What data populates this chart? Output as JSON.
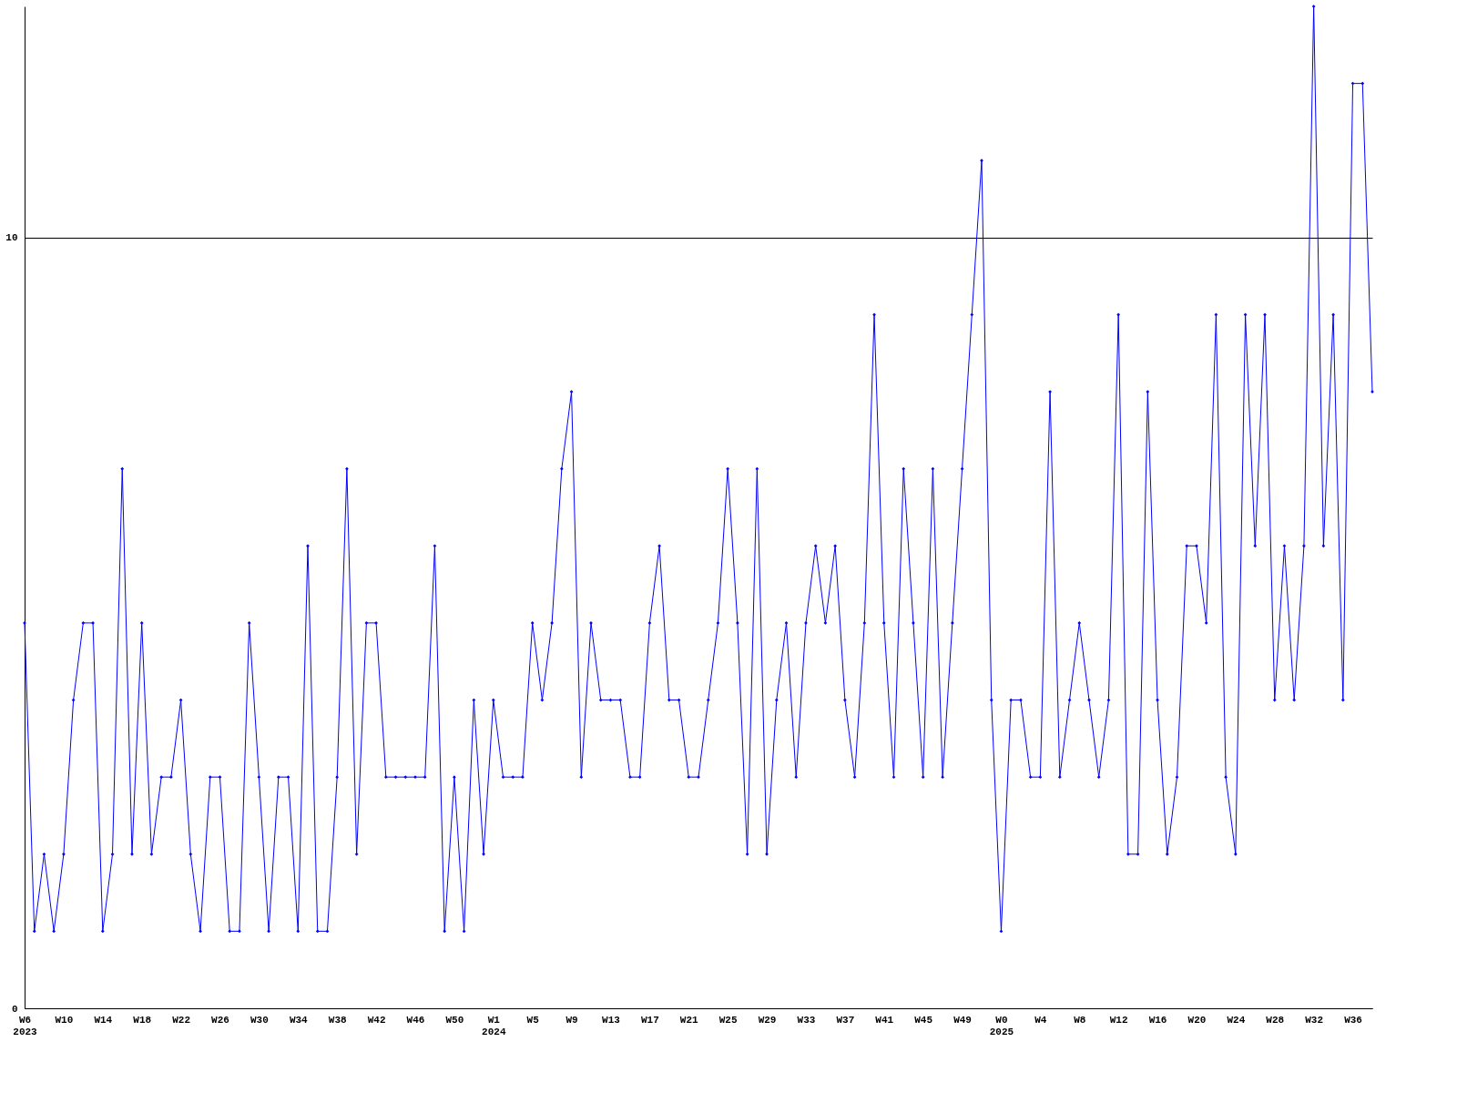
{
  "chart_data": {
    "type": "line",
    "categories": [
      "W6\n2023",
      null,
      null,
      null,
      "W10",
      null,
      null,
      null,
      "W14",
      null,
      null,
      null,
      "W18",
      null,
      null,
      null,
      "W22",
      null,
      null,
      null,
      "W26",
      null,
      null,
      null,
      "W30",
      null,
      null,
      null,
      "W34",
      null,
      null,
      null,
      "W38",
      null,
      null,
      null,
      "W42",
      null,
      null,
      null,
      "W46",
      null,
      null,
      null,
      "W50",
      null,
      null,
      null,
      "W1\n2024",
      null,
      null,
      null,
      "W5",
      null,
      null,
      null,
      "W9",
      null,
      null,
      null,
      "W13",
      null,
      null,
      null,
      "W17",
      null,
      null,
      null,
      "W21",
      null,
      null,
      null,
      "W25",
      null,
      null,
      null,
      "W29",
      null,
      null,
      null,
      "W33",
      null,
      null,
      null,
      "W37",
      null,
      null,
      null,
      "W41",
      null,
      null,
      null,
      "W45",
      null,
      null,
      null,
      "W49",
      null,
      null,
      null,
      "W0\n2025",
      null,
      null,
      null,
      "W4",
      null,
      null,
      null,
      "W8",
      null,
      null,
      null,
      "W12",
      null,
      null,
      null,
      "W16",
      null,
      null,
      null,
      "W20",
      null,
      null,
      null,
      "W24",
      null,
      null,
      null,
      "W28",
      null,
      null,
      null,
      "W32",
      null,
      null,
      null,
      "W36",
      null,
      null
    ],
    "series": [
      {
        "color": "#0000ff",
        "values": [
          5,
          1,
          2,
          1,
          2,
          4,
          5,
          5,
          1,
          2,
          7,
          2,
          5,
          2,
          3,
          3,
          4,
          2,
          1,
          3,
          3,
          1,
          1,
          5,
          3,
          1,
          3,
          3,
          1,
          6,
          1,
          1,
          3,
          7,
          2,
          5,
          5,
          3,
          3,
          3,
          3,
          3,
          6,
          1,
          3,
          1,
          4,
          2,
          4,
          3,
          3,
          3,
          5,
          4,
          5,
          7,
          8,
          3,
          5,
          4,
          4,
          4,
          3,
          3,
          5,
          6,
          4,
          4,
          3,
          3,
          4,
          5,
          7,
          5,
          2,
          7,
          2,
          4,
          5,
          3,
          5,
          6,
          5,
          6,
          4,
          3,
          5,
          9,
          5,
          3,
          7,
          5,
          3,
          7,
          3,
          5,
          7,
          9,
          11,
          4,
          1,
          4,
          4,
          3,
          3,
          8,
          3,
          4,
          5,
          4,
          3,
          4,
          9,
          2,
          2,
          8,
          4,
          2,
          3,
          6,
          6,
          5,
          9,
          3,
          2,
          9,
          6,
          9,
          4,
          6,
          4,
          6,
          13,
          6,
          9,
          4,
          12,
          12,
          8
        ]
      }
    ],
    "ylim": [
      0,
      13
    ],
    "yticks": [
      0,
      10
    ],
    "grid": "y",
    "marker": "diamond",
    "line_style": "solid"
  }
}
